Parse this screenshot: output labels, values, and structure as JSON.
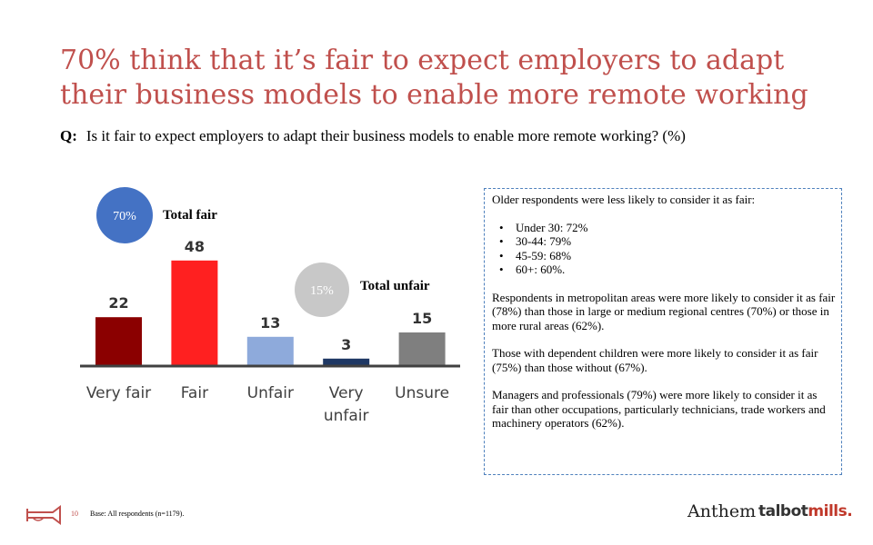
{
  "title": "70% think that it’s fair to expect employers to adapt their business models to enable more remote working",
  "question": {
    "label": "Q:",
    "text": "Is it fair to expect employers to adapt their business models to enable more remote working? (%)"
  },
  "chart_data": {
    "type": "bar",
    "categories": [
      "Very fair",
      "Fair",
      "Unfair",
      "Very unfair",
      "Unsure"
    ],
    "values": [
      22,
      48,
      13,
      3,
      15
    ],
    "colors": [
      "#8b0000",
      "#ff2020",
      "#8eaadb",
      "#1f3864",
      "#7f7f7f"
    ],
    "data_labels": [
      "22",
      "48",
      "13",
      "3",
      "15"
    ],
    "ylim": [
      0,
      50
    ],
    "grid": false,
    "annotations": [
      {
        "bubble": "70%",
        "label": "Total fair",
        "color": "#4472c4",
        "text_color": "#ffffff"
      },
      {
        "bubble": "15%",
        "label": "Total unfair",
        "color": "#bfbfbf",
        "text_color": "#ffffff"
      }
    ]
  },
  "notes": {
    "intro": "Older respondents  were less likely to consider it as fair:",
    "items": [
      "Under 30: 72%",
      "30-44: 79%",
      "45-59: 68%",
      "60+: 60%."
    ],
    "paragraphs": [
      "Respondents in metropolitan areas were more likely to consider it as fair (78%) than those in large or medium regional centres (70%) or those in more rural areas (62%).",
      "Those with dependent children were more likely to consider it as fair (75%) than those without (67%).",
      "Managers and professionals (79%) were more likely to consider it as fair than other occupations, particularly technicians, trade workers and machinery operators (62%)."
    ]
  },
  "footer": {
    "page": "10",
    "base": "Base: All respondents (n=1179)."
  },
  "logos": {
    "anthem": "Anthem",
    "talbot": "talbot",
    "mills": "mills."
  }
}
